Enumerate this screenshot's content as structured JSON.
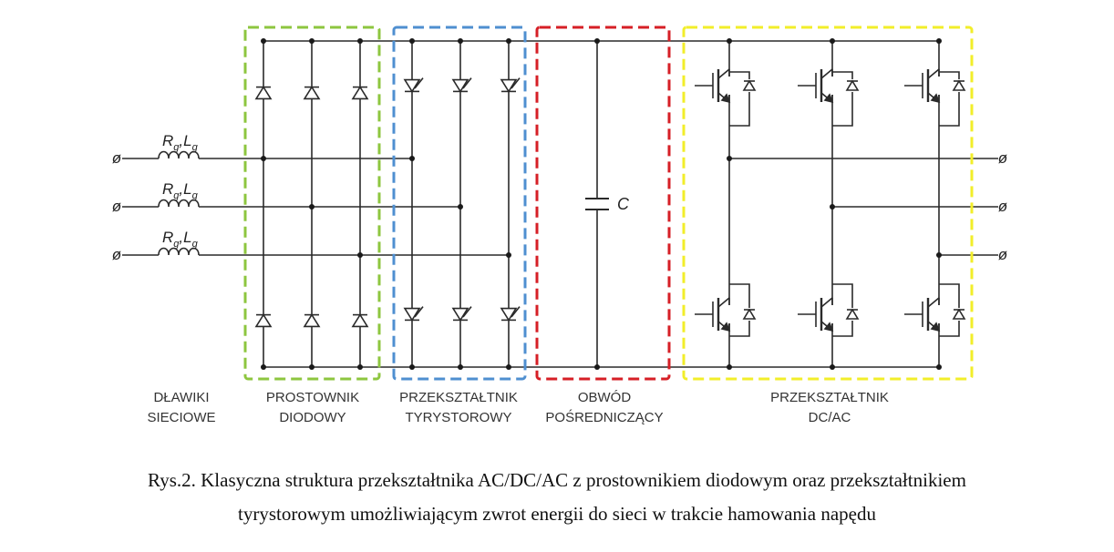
{
  "colors": {
    "wire": "#2a2a2a",
    "diode_rectifier": "#8dc63f",
    "thyristor_converter": "#4f8fd0",
    "dc_link": "#d61f26",
    "inverter": "#f2ee2a"
  },
  "components": {
    "inductor_r": "R",
    "inductor_r_sub": "g",
    "inductor_sep": ",",
    "inductor_l": "L",
    "inductor_l_sub": "g",
    "capacitor": "C",
    "terminal_symbol": "ø"
  },
  "labels": {
    "line_reactors": [
      "DŁAWIKI",
      "SIECIOWE"
    ],
    "diode_rectifier": [
      "PROSTOWNIK",
      "DIODOWY"
    ],
    "thyristor_converter": [
      "PRZEKSZTAŁTNIK",
      "TYRYSTOROWY"
    ],
    "dc_link": [
      "OBWÓD",
      "POŚREDNICZĄCY"
    ],
    "inverter": [
      "PRZEKSZTAŁTNIK",
      "DC/AC"
    ]
  },
  "caption": {
    "line1": "Rys.2. Klasyczna struktura przekształtnika AC/DC/AC z prostownikiem diodowym oraz przekształtnikiem",
    "line2": "tyrystorowym umożliwiającym zwrot energii do sieci w trakcie hamowania napędu"
  }
}
